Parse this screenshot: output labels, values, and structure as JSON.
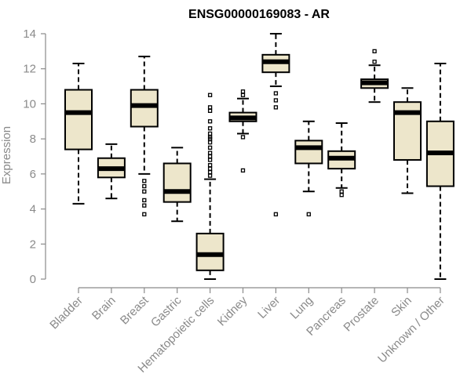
{
  "chart_data": {
    "type": "boxplot",
    "title": "ENSG00000169083 - AR",
    "xlabel": "",
    "ylabel": "Expression",
    "ylim": [
      0,
      14
    ],
    "yticks": [
      0,
      2,
      4,
      6,
      8,
      10,
      12,
      14
    ],
    "grid": false,
    "colors": {
      "box_fill": "#ede6cb",
      "stroke": "#000000",
      "axis": "#8a8a8a"
    },
    "categories": [
      "Bladder",
      "Brain",
      "Breast",
      "Gastric",
      "Hematopoietic cells",
      "Kidney",
      "Liver",
      "Lung",
      "Pancreas",
      "Prostate",
      "Skin",
      "Unknown / Other"
    ],
    "boxes": [
      {
        "category": "Bladder",
        "whisker_low": 4.3,
        "q1": 7.4,
        "median": 9.5,
        "q3": 10.8,
        "whisker_high": 12.3,
        "outliers": []
      },
      {
        "category": "Brain",
        "whisker_low": 4.6,
        "q1": 5.8,
        "median": 6.3,
        "q3": 6.9,
        "whisker_high": 7.7,
        "outliers": []
      },
      {
        "category": "Breast",
        "whisker_low": 6.0,
        "q1": 8.7,
        "median": 9.9,
        "q3": 10.8,
        "whisker_high": 12.7,
        "outliers": [
          5.6,
          5.3,
          5.0,
          4.5,
          4.2,
          3.7
        ]
      },
      {
        "category": "Gastric",
        "whisker_low": 3.3,
        "q1": 4.4,
        "median": 5.0,
        "q3": 6.6,
        "whisker_high": 7.5,
        "outliers": []
      },
      {
        "category": "Hematopoietic cells",
        "whisker_low": 0.0,
        "q1": 0.5,
        "median": 1.4,
        "q3": 2.6,
        "whisker_high": 5.7,
        "outliers": [
          10.5,
          9.8,
          9.6,
          9.0,
          8.6,
          8.3,
          8.1,
          8.0,
          7.8,
          7.5,
          7.2,
          7.0,
          6.8,
          6.5,
          6.3,
          6.1,
          5.9
        ]
      },
      {
        "category": "Kidney",
        "whisker_low": 8.3,
        "q1": 9.0,
        "median": 9.2,
        "q3": 9.5,
        "whisker_high": 10.3,
        "outliers": [
          10.7,
          10.5,
          8.1,
          6.2
        ]
      },
      {
        "category": "Liver",
        "whisker_low": 11.0,
        "q1": 11.8,
        "median": 12.4,
        "q3": 12.8,
        "whisker_high": 14.0,
        "outliers": [
          10.6,
          10.2,
          9.8,
          3.7
        ]
      },
      {
        "category": "Lung",
        "whisker_low": 5.0,
        "q1": 6.6,
        "median": 7.5,
        "q3": 7.9,
        "whisker_high": 9.0,
        "outliers": [
          3.7
        ]
      },
      {
        "category": "Pancreas",
        "whisker_low": 5.2,
        "q1": 6.3,
        "median": 6.9,
        "q3": 7.3,
        "whisker_high": 8.9,
        "outliers": [
          5.0,
          4.8
        ]
      },
      {
        "category": "Prostate",
        "whisker_low": 10.1,
        "q1": 10.9,
        "median": 11.2,
        "q3": 11.4,
        "whisker_high": 12.2,
        "outliers": [
          13.0,
          12.4
        ]
      },
      {
        "category": "Skin",
        "whisker_low": 4.9,
        "q1": 6.8,
        "median": 9.5,
        "q3": 10.1,
        "whisker_high": 10.9,
        "outliers": []
      },
      {
        "category": "Unknown / Other",
        "whisker_low": 0.0,
        "q1": 5.3,
        "median": 7.2,
        "q3": 9.0,
        "whisker_high": 12.3,
        "outliers": []
      }
    ]
  }
}
